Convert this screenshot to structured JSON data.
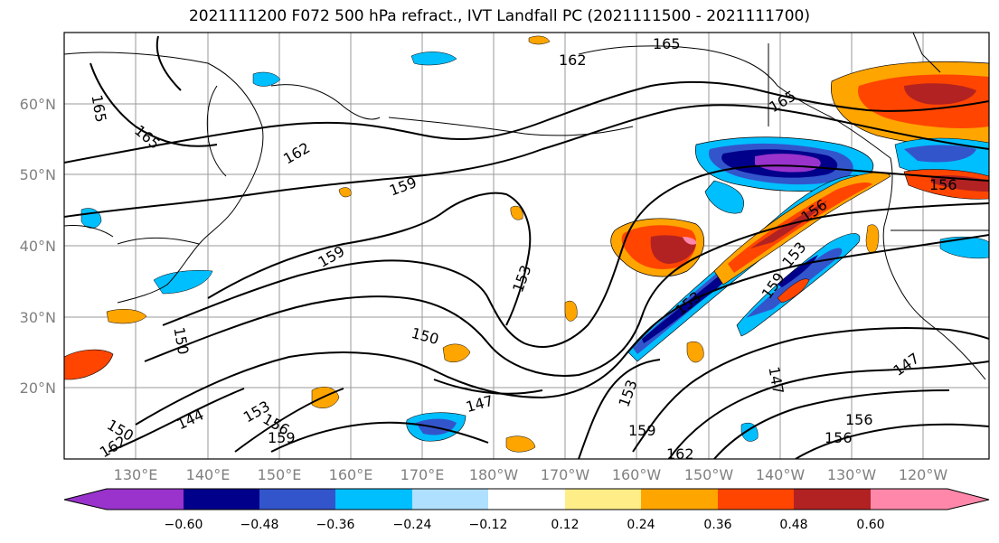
{
  "title": "2021111200 F072 500 hPa refract., IVT Landfall PC (2021111500 - 2021111700)",
  "lat_labels": [
    "60°N",
    "50°N",
    "40°N",
    "30°N",
    "20°N"
  ],
  "lon_labels": [
    "130°E",
    "140°E",
    "150°E",
    "160°E",
    "170°E",
    "180°W",
    "170°W",
    "160°W",
    "150°W",
    "140°W",
    "130°W",
    "120°W"
  ],
  "colorbar": {
    "colors": [
      "#9933cc",
      "#00008b",
      "#3355cc",
      "#00bfff",
      "#b0e0ff",
      "#ffffff",
      "#ffee88",
      "#ffa500",
      "#ff4500",
      "#b22222",
      "#ff88aa"
    ],
    "tick_labels": [
      "−0.60",
      "−0.48",
      "−0.36",
      "−0.24",
      "−0.12",
      "0.12",
      "0.24",
      "0.36",
      "0.48",
      "0.60"
    ]
  },
  "contour_labels": [
    "165",
    "165",
    "162",
    "165",
    "159",
    "162",
    "165",
    "159",
    "153",
    "150",
    "150",
    "147",
    "159",
    "159",
    "162",
    "147",
    "147",
    "156",
    "156",
    "153",
    "153",
    "153",
    "156",
    "156",
    "159",
    "153",
    "144",
    "150",
    "156",
    "162"
  ]
}
